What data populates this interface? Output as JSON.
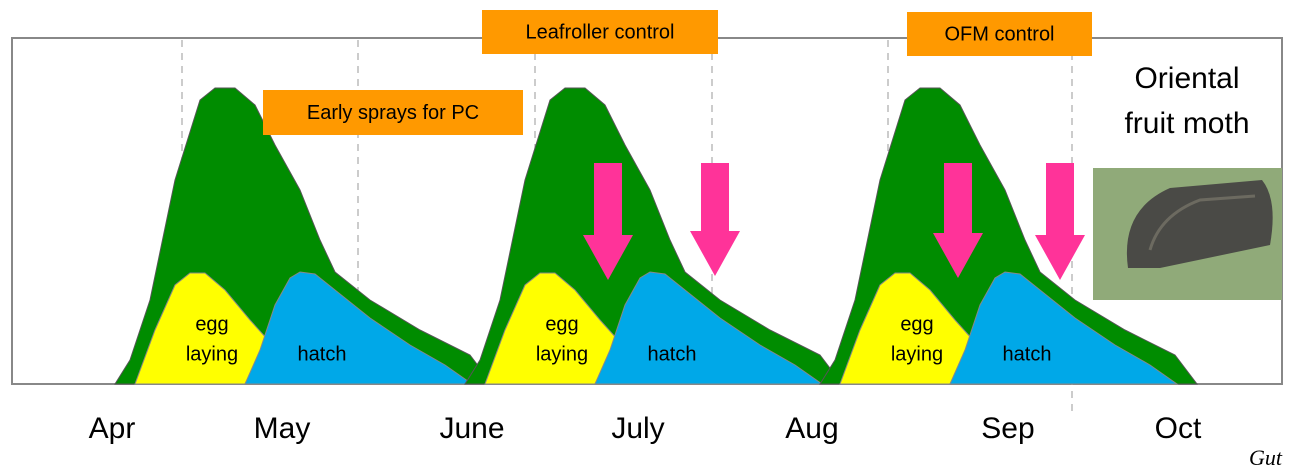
{
  "months": [
    "Apr",
    "May",
    "June",
    "July",
    "Aug",
    "Sep",
    "Oct"
  ],
  "callouts": [
    "Early sprays for PC",
    "Leafroller control",
    "OFM control"
  ],
  "generations": [
    {
      "egg_laying": [
        "egg",
        "laying"
      ],
      "hatch": "hatch"
    },
    {
      "egg_laying": [
        "egg",
        "laying"
      ],
      "hatch": "hatch"
    },
    {
      "egg_laying": [
        "egg",
        "laying"
      ],
      "hatch": "hatch"
    }
  ],
  "photo_caption": [
    "Oriental",
    "fruit moth"
  ],
  "credit": "Gut"
}
